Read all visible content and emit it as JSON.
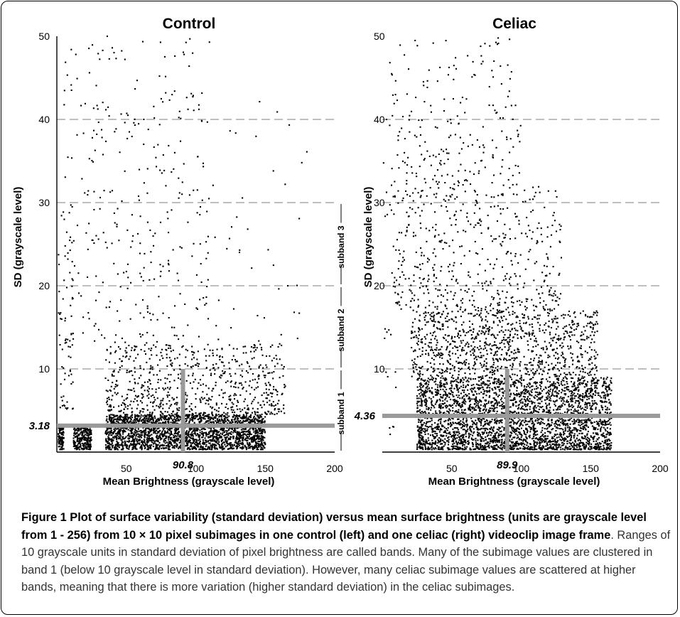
{
  "chart_data": [
    {
      "type": "scatter",
      "title": "Control",
      "xlabel": "Mean Brightness (grayscale level)",
      "ylabel": "SD (grayscale level)",
      "xlim": [
        0,
        200
      ],
      "ylim": [
        0,
        50
      ],
      "x_ticks": [
        50,
        100,
        150,
        200
      ],
      "y_ticks": [
        10,
        20,
        30,
        40,
        50
      ],
      "grid": "horizontal dashed at 10, 20, 30, 40",
      "mean_x_label": "90.8",
      "mean_y_label": "3.18",
      "mean_x": 90.8,
      "mean_y": 3.18,
      "point_clusters": [
        {
          "x_range": [
            1,
            5
          ],
          "y_range": [
            0.3,
            3.2
          ],
          "count": 120
        },
        {
          "x_range": [
            12,
            25
          ],
          "y_range": [
            0.3,
            3.2
          ],
          "count": 260
        },
        {
          "x_range": [
            35,
            150
          ],
          "y_range": [
            0.3,
            4.5
          ],
          "count": 2400
        },
        {
          "x_range": [
            35,
            165
          ],
          "y_range": [
            4.5,
            13
          ],
          "count": 700
        },
        {
          "x_range": [
            1,
            12
          ],
          "y_range": [
            5,
            30
          ],
          "count": 70
        },
        {
          "x_range": [
            5,
            110
          ],
          "y_range": [
            13,
            50
          ],
          "count": 320
        },
        {
          "x_range": [
            110,
            180
          ],
          "y_range": [
            13,
            43
          ],
          "count": 40
        }
      ],
      "subband_labels": [
        "subband 1",
        "subband 2",
        "subband 3"
      ]
    },
    {
      "type": "scatter",
      "title": "Celiac",
      "xlabel": "Mean Brightness (grayscale level)",
      "ylabel": "SD (grayscale level)",
      "xlim": [
        0,
        200
      ],
      "ylim": [
        0,
        50
      ],
      "x_ticks": [
        50,
        100,
        150,
        200
      ],
      "y_ticks": [
        10,
        20,
        30,
        40,
        50
      ],
      "grid": "horizontal dashed at 10, 20, 30, 40",
      "mean_x_label": "89.9",
      "mean_y_label": "4.36",
      "mean_x": 89.9,
      "mean_y": 4.36,
      "point_clusters": [
        {
          "x_range": [
            25,
            165
          ],
          "y_range": [
            0.3,
            9
          ],
          "count": 3200
        },
        {
          "x_range": [
            20,
            155
          ],
          "y_range": [
            9,
            17
          ],
          "count": 1000
        },
        {
          "x_range": [
            8,
            130
          ],
          "y_range": [
            17,
            32
          ],
          "count": 520
        },
        {
          "x_range": [
            5,
            100
          ],
          "y_range": [
            32,
            50
          ],
          "count": 220
        },
        {
          "x_range": [
            0,
            10
          ],
          "y_range": [
            2,
            40
          ],
          "count": 25
        }
      ]
    }
  ],
  "caption": {
    "bold": "Figure 1 Plot of surface variability (standard deviation) versus mean surface brightness (units are grayscale level from 1 - 256) from 10 × 10 pixel subimages in one control (left) and one celiac (right) videoclip image frame",
    "text": ". Ranges of 10 grayscale units in standard deviation of pixel brightness are called bands. Many of the subimage values are clustered in band 1 (below 10 grayscale level in standard deviation). However, many celiac subimage values are scattered at higher bands, meaning that there is more variation (higher standard deviation) in the celiac subimages."
  }
}
